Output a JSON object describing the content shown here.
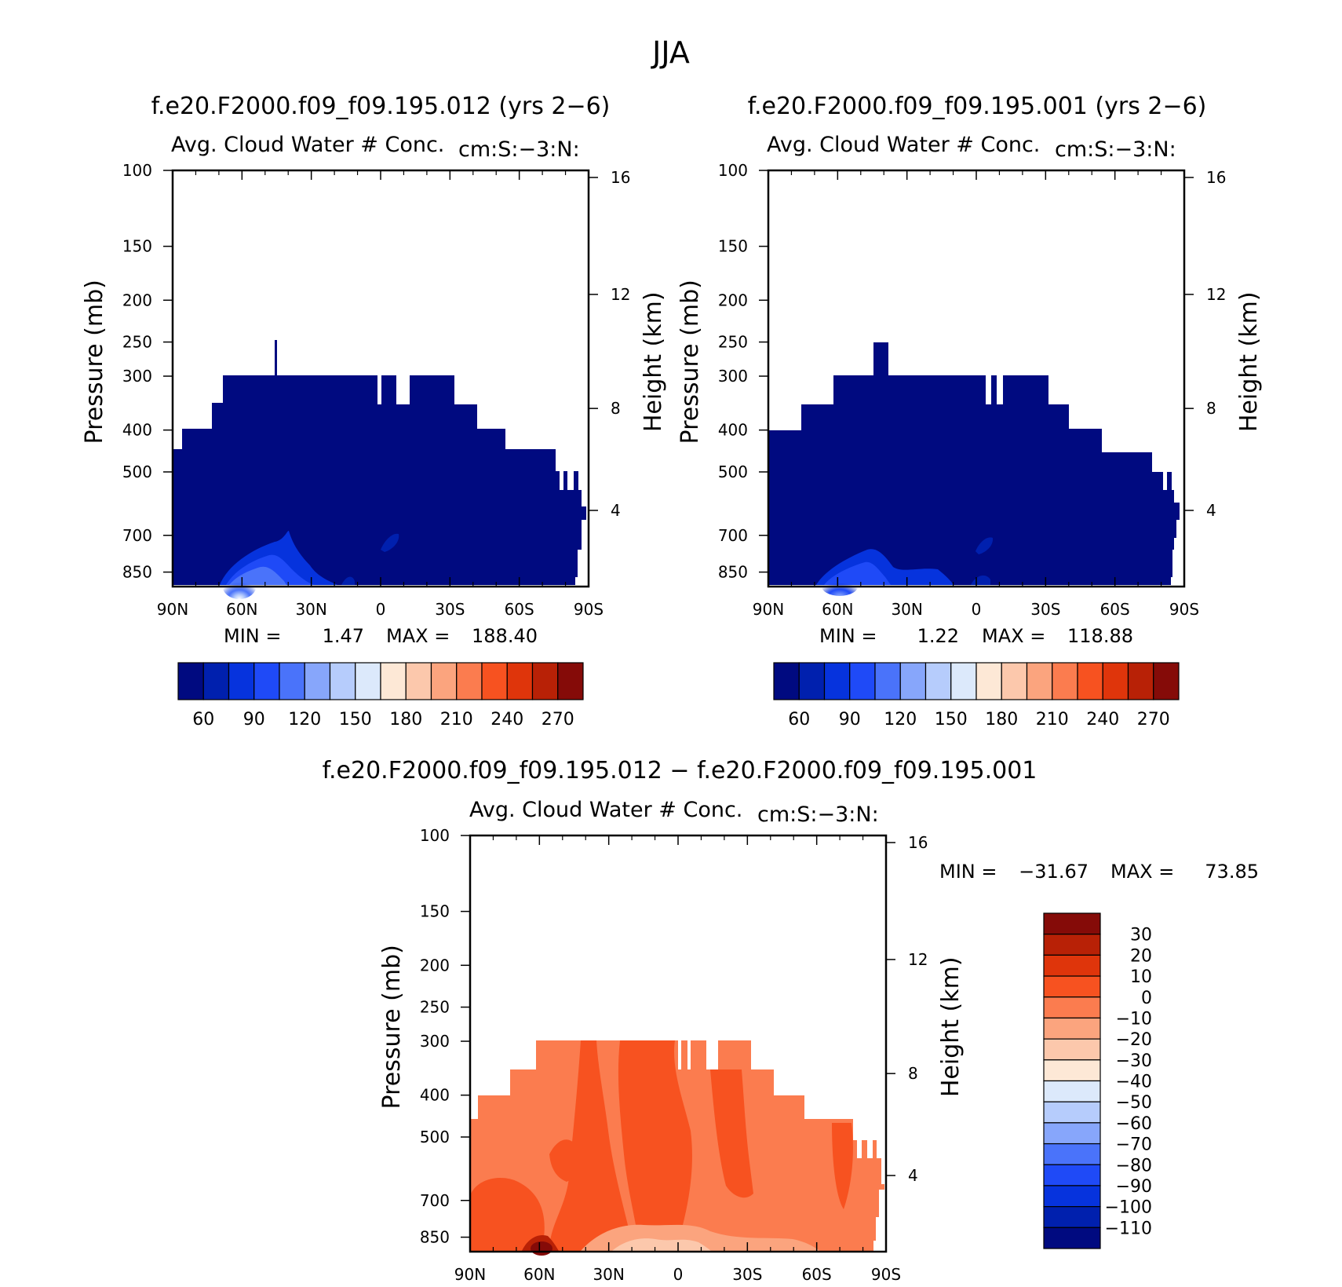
{
  "figure": {
    "title": "JJA"
  },
  "colors": {
    "abs_palette": [
      "#000a80",
      "#0020ae",
      "#0633dd",
      "#1f4af7",
      "#4a73fa",
      "#87a6fb",
      "#b6ccfc",
      "#dce9fb",
      "#fde8d6",
      "#fcc8ac",
      "#fba47e",
      "#fb7c4f",
      "#f75220",
      "#df350b",
      "#b82106",
      "#850b08"
    ],
    "diff_palette": [
      "#000a80",
      "#0020ae",
      "#0633dd",
      "#1f4af7",
      "#4a73fa",
      "#87a6fb",
      "#b6ccfc",
      "#dce9fb",
      "#fde8d6",
      "#fcc8ac",
      "#fba47e",
      "#fb7c4f",
      "#f75220",
      "#df350b",
      "#b82106",
      "#850b08"
    ]
  },
  "chart_data": [
    {
      "type": "heatmap",
      "title": "f.e20.F2000.f09_f09.195.012 (yrs 2−6)",
      "subtitle_left": "Avg. Cloud Water # Conc.",
      "subtitle_right": "cm:S:−3:N:",
      "ylabel": "Pressure (mb)",
      "y2label": "Height (km)",
      "x_ticks": [
        "90N",
        "60N",
        "30N",
        "0",
        "30S",
        "60S",
        "90S"
      ],
      "y_ticks": [
        "100",
        "150",
        "200",
        "250",
        "300",
        "400",
        "500",
        "700",
        "850"
      ],
      "y2_ticks": [
        "16",
        "12",
        "8",
        "4"
      ],
      "stats": {
        "min_label": "MIN =",
        "min": "1.47",
        "max_label": "MAX =",
        "max": "188.40"
      },
      "colorbar_labels": [
        "60",
        "90",
        "120",
        "150",
        "180",
        "210",
        "240",
        "270"
      ],
      "ylim": [
        100,
        1000
      ],
      "x": [
        90,
        -90
      ]
    },
    {
      "type": "heatmap",
      "title": "f.e20.F2000.f09_f09.195.001 (yrs 2−6)",
      "subtitle_left": "Avg. Cloud Water # Conc.",
      "subtitle_right": "cm:S:−3:N:",
      "ylabel": "Pressure (mb)",
      "y2label": "Height (km)",
      "x_ticks": [
        "90N",
        "60N",
        "30N",
        "0",
        "30S",
        "60S",
        "90S"
      ],
      "y_ticks": [
        "100",
        "150",
        "200",
        "250",
        "300",
        "400",
        "500",
        "700",
        "850"
      ],
      "y2_ticks": [
        "16",
        "12",
        "8",
        "4"
      ],
      "stats": {
        "min_label": "MIN =",
        "min": "1.22",
        "max_label": "MAX =",
        "max": "118.88"
      },
      "colorbar_labels": [
        "60",
        "90",
        "120",
        "150",
        "180",
        "210",
        "240",
        "270"
      ],
      "ylim": [
        100,
        1000
      ],
      "x": [
        90,
        -90
      ]
    },
    {
      "type": "heatmap",
      "title": "f.e20.F2000.f09_f09.195.012 − f.e20.F2000.f09_f09.195.001",
      "subtitle_left": "Avg. Cloud Water # Conc.",
      "subtitle_right": "cm:S:−3:N:",
      "ylabel": "Pressure (mb)",
      "y2label": "Height (km)",
      "x_ticks": [
        "90N",
        "60N",
        "30N",
        "0",
        "30S",
        "60S",
        "90S"
      ],
      "y_ticks": [
        "100",
        "150",
        "200",
        "250",
        "300",
        "400",
        "500",
        "700",
        "850"
      ],
      "y2_ticks": [
        "16",
        "12",
        "8",
        "4"
      ],
      "stats": {
        "min_label": "MIN =",
        "min": "−31.67",
        "max_label": "MAX =",
        "max": "73.85"
      },
      "colorbar_labels": [
        "30",
        "20",
        "10",
        "0",
        "−10",
        "−20",
        "−30",
        "−40",
        "−50",
        "−60",
        "−70",
        "−80",
        "−90",
        "−100",
        "−110"
      ],
      "ylim": [
        100,
        1000
      ],
      "x": [
        90,
        -90
      ]
    }
  ]
}
